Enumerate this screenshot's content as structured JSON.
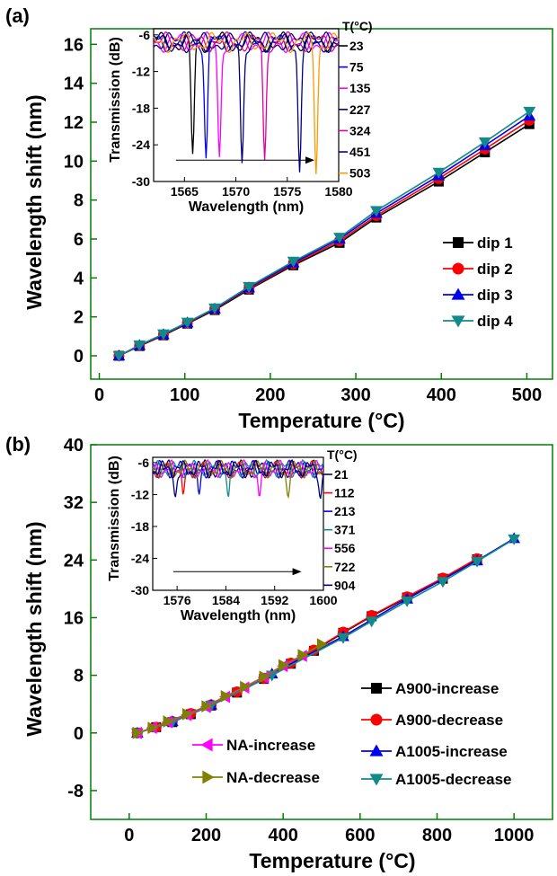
{
  "colors": {
    "black": "#000000",
    "red": "#ff0000",
    "blue": "#0000ee",
    "teal": "#138a8a",
    "magenta": "#ff00ff",
    "olive": "#808000",
    "orange": "#ff9900",
    "navy": "#000080",
    "pink": "#e0009e",
    "green_axis": "#008000"
  },
  "chart_data": [
    {
      "id": "a",
      "panel_label": "(a)",
      "type": "line",
      "xlabel": "Temperature (°C)",
      "ylabel": "Wavelength shift (nm)",
      "xlim": [
        -10,
        530
      ],
      "ylim": [
        -1.2,
        16.8
      ],
      "xticks": [
        0,
        100,
        200,
        300,
        400,
        500
      ],
      "yticks": [
        0,
        2,
        4,
        6,
        8,
        10,
        12,
        14,
        16
      ],
      "x": [
        23,
        47,
        75,
        103,
        135,
        175,
        227,
        281,
        324,
        397,
        451,
        503
      ],
      "series": [
        {
          "name": "dip 1",
          "marker": "square",
          "color": "#000000",
          "values": [
            0,
            0.5,
            1.05,
            1.65,
            2.35,
            3.4,
            4.65,
            5.8,
            7.1,
            8.95,
            10.45,
            11.9
          ]
        },
        {
          "name": "dip 2",
          "marker": "circle",
          "color": "#ff0000",
          "values": [
            0,
            0.52,
            1.08,
            1.68,
            2.4,
            3.45,
            4.72,
            5.9,
            7.2,
            9.1,
            10.62,
            12.1
          ]
        },
        {
          "name": "dip 3",
          "marker": "triangle-up",
          "color": "#0000ee",
          "values": [
            0,
            0.54,
            1.1,
            1.7,
            2.42,
            3.5,
            4.78,
            6.0,
            7.32,
            9.25,
            10.8,
            12.32
          ]
        },
        {
          "name": "dip 4",
          "marker": "triangle-down",
          "color": "#138a8a",
          "values": [
            0,
            0.55,
            1.12,
            1.72,
            2.45,
            3.55,
            4.85,
            6.08,
            7.45,
            9.42,
            10.98,
            12.55
          ]
        }
      ],
      "legend_position": "right-middle",
      "inset": {
        "xlabel": "Wavelength (nm)",
        "ylabel": "Transmission (dB)",
        "xlim": [
          1562,
          1580
        ],
        "ylim": [
          -30,
          -5
        ],
        "xticks": [
          1565,
          1570,
          1575,
          1580
        ],
        "yticks": [
          -6,
          -12,
          -18,
          -24,
          -30
        ],
        "legend_title": "T(°C)",
        "temps": [
          "23",
          "75",
          "135",
          "227",
          "324",
          "451",
          "503"
        ],
        "dips": [
          {
            "temp": "23",
            "color": "#000000",
            "center": 1565.8,
            "depth": -25.5
          },
          {
            "temp": "75",
            "color": "#0000ee",
            "center": 1567.1,
            "depth": -26.2
          },
          {
            "temp": "135",
            "color": "#ff00ff",
            "center": 1568.4,
            "depth": -26.0
          },
          {
            "temp": "227",
            "color": "#000080",
            "center": 1570.6,
            "depth": -27.0
          },
          {
            "temp": "324",
            "color": "#e0009e",
            "center": 1572.8,
            "depth": -26.5
          },
          {
            "temp": "451",
            "color": "#000080",
            "center": 1576.2,
            "depth": -28.5
          },
          {
            "temp": "503",
            "color": "#ff9900",
            "center": 1577.8,
            "depth": -28.8
          }
        ]
      }
    },
    {
      "id": "b",
      "panel_label": "(b)",
      "type": "line",
      "xlabel": "Temperature (°C)",
      "ylabel": "Wavelength shift (nm)",
      "xlim": [
        -100,
        1100
      ],
      "ylim": [
        -12,
        40
      ],
      "xticks": [
        0,
        200,
        400,
        600,
        800,
        1000
      ],
      "yticks": [
        -8,
        0,
        8,
        16,
        24,
        32,
        40
      ],
      "series": [
        {
          "name": "A900-increase",
          "marker": "square",
          "color": "#000000",
          "x": [
            21,
            70,
            112,
            160,
            213,
            280,
            350,
            420,
            480,
            556,
            630,
            722,
            815,
            904
          ],
          "values": [
            0,
            0.8,
            1.5,
            2.6,
            3.8,
            5.6,
            7.5,
            9.6,
            11.4,
            13.9,
            16.2,
            18.8,
            21.4,
            24.1
          ]
        },
        {
          "name": "A900-decrease",
          "marker": "circle",
          "color": "#ff0000",
          "x": [
            21,
            70,
            112,
            160,
            213,
            280,
            350,
            420,
            480,
            556,
            630,
            722,
            815,
            904
          ],
          "values": [
            0,
            0.8,
            1.6,
            2.7,
            3.9,
            5.7,
            7.6,
            9.7,
            11.5,
            14.0,
            16.3,
            18.9,
            21.5,
            24.2
          ]
        },
        {
          "name": "A1005-increase",
          "marker": "triangle-up",
          "color": "#0000ee",
          "x": [
            21,
            112,
            213,
            371,
            556,
            722,
            904,
            1000
          ],
          "values": [
            0,
            1.6,
            3.9,
            8.2,
            13.4,
            18.6,
            23.9,
            27.0
          ]
        },
        {
          "name": "A1005-decrease",
          "marker": "triangle-down",
          "color": "#138a8a",
          "x": [
            21,
            112,
            213,
            371,
            556,
            630,
            722,
            815,
            904,
            1000
          ],
          "values": [
            0,
            1.5,
            3.8,
            8.0,
            13.2,
            15.5,
            18.3,
            21.0,
            23.8,
            26.9
          ]
        },
        {
          "name": "NA-increase",
          "marker": "triangle-left",
          "color": "#ff00ff",
          "x": [
            21,
            60,
            100,
            150,
            200,
            250,
            300,
            350,
            400,
            450
          ],
          "values": [
            0,
            0.7,
            1.5,
            2.5,
            3.6,
            5.0,
            6.3,
            7.7,
            9.3,
            10.7
          ]
        },
        {
          "name": "NA-decrease",
          "marker": "triangle-right",
          "color": "#808000",
          "x": [
            21,
            60,
            100,
            150,
            200,
            250,
            300,
            350,
            400,
            450,
            500
          ],
          "values": [
            0,
            0.7,
            1.6,
            2.6,
            3.7,
            5.1,
            6.4,
            7.8,
            9.4,
            10.8,
            12.3
          ]
        }
      ],
      "legend_position": "bottom-right",
      "inset": {
        "xlabel": "Wavelength (nm)",
        "ylabel": "Transmission (dB)",
        "xlim": [
          1572,
          1600
        ],
        "ylim": [
          -30,
          -5
        ],
        "xticks": [
          1576,
          1584,
          1592,
          1600
        ],
        "yticks": [
          -6,
          -12,
          -18,
          -24,
          -30
        ],
        "legend_title": "T(°C)",
        "temps": [
          "21",
          "112",
          "213",
          "371",
          "556",
          "722",
          "904"
        ],
        "dips": [
          {
            "temp": "21",
            "color": "#000080",
            "center": 1575.7,
            "depth": -12.5
          },
          {
            "temp": "112",
            "color": "#ff0000",
            "center": 1577.0,
            "depth": -12.0
          },
          {
            "temp": "213",
            "color": "#0000ee",
            "center": 1579.6,
            "depth": -12.0
          },
          {
            "temp": "371",
            "color": "#138a8a",
            "center": 1584.4,
            "depth": -12.5
          },
          {
            "temp": "556",
            "color": "#ff00ff",
            "center": 1589.5,
            "depth": -12.5
          },
          {
            "temp": "722",
            "color": "#808000",
            "center": 1594.2,
            "depth": -12.5
          },
          {
            "temp": "904",
            "color": "#000080",
            "center": 1599.5,
            "depth": -12.8
          }
        ]
      }
    }
  ]
}
